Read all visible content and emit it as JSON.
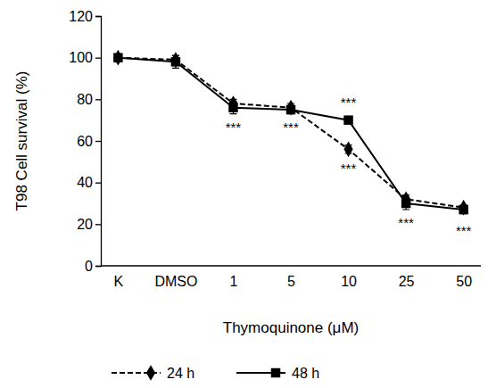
{
  "chart_data": {
    "type": "line",
    "x_label": "Thymoquinone (μM)",
    "y_label": "T98 Cell survival (%)",
    "categories": [
      "K",
      "DMSO",
      "1",
      "5",
      "10",
      "25",
      "50"
    ],
    "series": [
      {
        "name": "24 h",
        "color": "#000000",
        "marker": "diamond",
        "line_style": "dashed",
        "values": [
          100,
          99,
          78,
          76,
          56,
          32,
          28
        ],
        "errors": [
          1,
          2,
          2,
          2,
          2,
          2,
          1
        ]
      },
      {
        "name": "48 h",
        "color": "#000000",
        "marker": "square",
        "line_style": "solid",
        "values": [
          100,
          98,
          76,
          75,
          70,
          30,
          27
        ],
        "errors": [
          1,
          3,
          3,
          2,
          1,
          3,
          2
        ]
      }
    ],
    "ylim": [
      0,
      120
    ],
    "yticks": [
      0,
      20,
      40,
      60,
      80,
      100,
      120
    ],
    "grid": false,
    "legend": "bottom",
    "annotations": [
      {
        "text": "***",
        "category": "1",
        "y": 67
      },
      {
        "text": "***",
        "category": "5",
        "y": 67
      },
      {
        "text": "***",
        "category": "10",
        "y": 79
      },
      {
        "text": "***",
        "category": "10",
        "y": 47
      },
      {
        "text": "***",
        "category": "25",
        "y": 21
      },
      {
        "text": "***",
        "category": "50",
        "y": 17
      }
    ]
  }
}
